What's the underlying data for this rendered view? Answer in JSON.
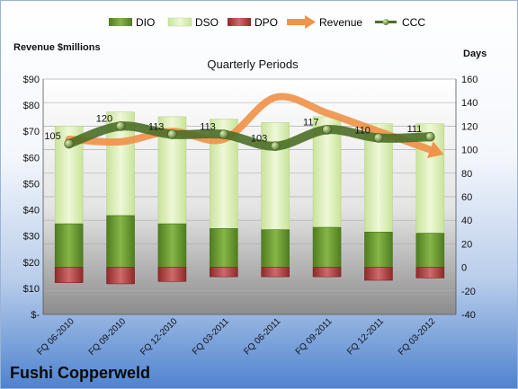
{
  "chart_data": {
    "type": "bar",
    "title": "Quarterly Periods",
    "company": "Fushi Copperweld",
    "left_axis_label": "Revenue $millions",
    "right_axis_label": "Days",
    "categories": [
      "FQ 06-2010",
      "FQ 09-2010",
      "FQ 12-2010",
      "FQ 03-2011",
      "FQ 06-2011",
      "FQ 09-2011",
      "FQ 12-2011",
      "FQ 03-2012"
    ],
    "left_ticks": [
      "$-",
      "$10",
      "$20",
      "$30",
      "$40",
      "$50",
      "$60",
      "$70",
      "$80",
      "$90"
    ],
    "left_ylim": [
      0,
      90
    ],
    "right_ylim": [
      -40,
      160
    ],
    "right_ticks": [
      -40,
      -20,
      0,
      20,
      40,
      60,
      80,
      100,
      120,
      140,
      160
    ],
    "legend_position": "top",
    "series": [
      {
        "name": "DIO",
        "axis": "days",
        "color": "#6a9a30",
        "values": [
          37,
          44,
          37,
          33,
          32,
          34,
          30,
          29
        ]
      },
      {
        "name": "DSO",
        "axis": "days",
        "color": "#dbeeb2",
        "values": [
          83,
          88,
          91,
          93,
          91,
          94,
          92,
          93
        ]
      },
      {
        "name": "DPO",
        "axis": "days",
        "color": "#b54848",
        "values": [
          -13,
          -14,
          -12,
          -8,
          -8,
          -8,
          -11,
          -9
        ]
      },
      {
        "name": "Revenue",
        "axis": "revenue",
        "color": "#f0934a",
        "values": [
          67,
          66,
          70,
          67,
          83,
          77,
          70,
          63
        ]
      },
      {
        "name": "CCC",
        "axis": "days",
        "color": "#4d6e27",
        "values": [
          105,
          120,
          113,
          113,
          103,
          117,
          110,
          111
        ]
      }
    ],
    "ccc_labels": [
      "105",
      "120",
      "113",
      "113",
      "103",
      "117",
      "110",
      "111"
    ]
  }
}
